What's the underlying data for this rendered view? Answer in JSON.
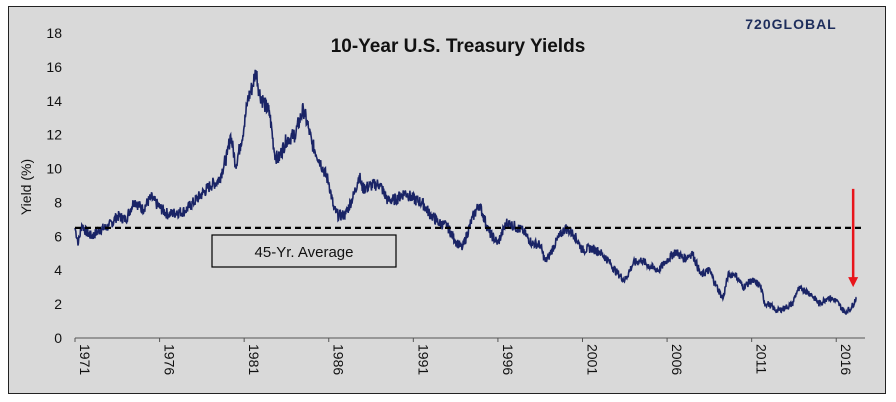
{
  "brand": {
    "logo_text": "720GLOBAL",
    "logo_color": "#1d2d5c"
  },
  "chart_data": {
    "type": "line",
    "title": "10-Year U.S. Treasury Yields",
    "ylabel": "Yield (%)",
    "xlabel": "",
    "ylim": [
      0,
      18
    ],
    "xlim": [
      1971,
      2017.7
    ],
    "y_ticks": [
      0,
      2,
      4,
      6,
      8,
      10,
      12,
      14,
      16,
      18
    ],
    "x_ticks": [
      "1971",
      "1976",
      "1981",
      "1986",
      "1991",
      "1996",
      "2001",
      "2006",
      "2011",
      "2016"
    ],
    "grid": false,
    "line_color": "#1a2466",
    "series": [
      {
        "x": [
          1971.0,
          1971.2,
          1971.4,
          1971.7,
          1972.0,
          1972.5,
          1973.0,
          1973.5,
          1974.0,
          1974.5,
          1975.0,
          1975.5,
          1976.0,
          1976.5,
          1977.0,
          1977.5,
          1978.0,
          1978.5,
          1979.0,
          1979.5,
          1980.0,
          1980.2,
          1980.5,
          1980.8,
          1981.0,
          1981.2,
          1981.5,
          1981.7,
          1981.9,
          1982.2,
          1982.5,
          1982.8,
          1983.0,
          1983.5,
          1984.0,
          1984.5,
          1984.8,
          1985.0,
          1985.5,
          1986.0,
          1986.3,
          1986.6,
          1987.0,
          1987.5,
          1987.8,
          1988.0,
          1988.5,
          1989.0,
          1989.5,
          1990.0,
          1990.5,
          1991.0,
          1991.5,
          1992.0,
          1992.5,
          1993.0,
          1993.5,
          1993.9,
          1994.5,
          1994.9,
          1995.5,
          1996.0,
          1996.5,
          1997.0,
          1997.5,
          1998.0,
          1998.5,
          1998.8,
          1999.0,
          1999.5,
          2000.0,
          2000.5,
          2001.0,
          2001.5,
          2002.0,
          2002.5,
          2003.0,
          2003.5,
          2004.0,
          2004.5,
          2005.0,
          2005.5,
          2006.0,
          2006.5,
          2007.0,
          2007.5,
          2008.0,
          2008.5,
          2008.9,
          2009.3,
          2009.6,
          2010.0,
          2010.5,
          2011.0,
          2011.5,
          2011.8,
          2012.0,
          2012.5,
          2013.0,
          2013.4,
          2013.7,
          2014.0,
          2014.5,
          2015.0,
          2015.5,
          2016.0,
          2016.5,
          2016.9,
          2017.2
        ],
        "y": [
          6.5,
          5.6,
          6.7,
          6.2,
          6.0,
          6.4,
          6.6,
          7.2,
          7.0,
          8.1,
          7.6,
          8.3,
          7.7,
          7.3,
          7.4,
          7.5,
          8.0,
          8.5,
          9.0,
          9.3,
          10.8,
          12.0,
          10.2,
          11.5,
          12.5,
          14.0,
          14.9,
          15.8,
          14.5,
          13.8,
          13.3,
          10.9,
          10.5,
          11.7,
          12.0,
          13.5,
          12.4,
          11.5,
          10.4,
          9.2,
          7.6,
          7.2,
          7.3,
          8.5,
          9.6,
          8.8,
          9.0,
          9.1,
          8.1,
          8.2,
          8.6,
          8.2,
          8.0,
          7.3,
          6.8,
          6.6,
          5.7,
          5.3,
          7.1,
          7.9,
          6.2,
          5.6,
          6.8,
          6.6,
          6.3,
          5.6,
          5.5,
          4.5,
          4.8,
          5.8,
          6.5,
          6.1,
          5.2,
          5.3,
          5.1,
          4.6,
          3.9,
          3.4,
          4.4,
          4.6,
          4.2,
          4.0,
          4.6,
          5.1,
          4.7,
          5.0,
          3.7,
          4.0,
          3.1,
          2.3,
          3.7,
          3.8,
          3.0,
          3.4,
          3.1,
          2.0,
          2.0,
          1.6,
          1.8,
          2.0,
          2.8,
          2.9,
          2.6,
          2.0,
          2.4,
          2.2,
          1.5,
          1.8,
          2.4
        ]
      }
    ],
    "reference_line": {
      "y": 6.5,
      "label": "45-Yr. Average",
      "style": "dashed"
    },
    "annotation_arrow": {
      "x": 2017.0,
      "y_from": 8.8,
      "y_to": 3.0,
      "color": "#e8151b"
    }
  }
}
